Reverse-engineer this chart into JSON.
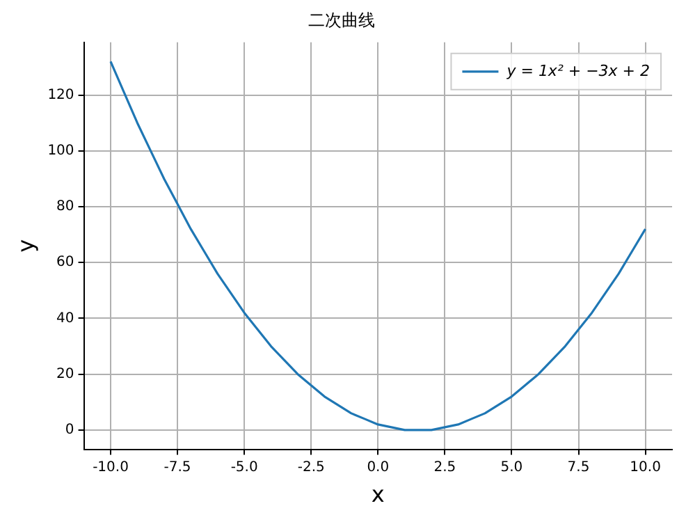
{
  "chart_data": {
    "type": "line",
    "title": "二次曲线",
    "xlabel": "x",
    "ylabel": "y",
    "x": [
      -10,
      -9.5,
      -9,
      -8.5,
      -8,
      -7.5,
      -7,
      -6.5,
      -6,
      -5.5,
      -5,
      -4.5,
      -4,
      -3.5,
      -3,
      -2.5,
      -2,
      -1.5,
      -1,
      -0.5,
      0,
      0.5,
      1,
      1.5,
      2,
      2.5,
      3,
      3.5,
      4,
      4.5,
      5,
      5.5,
      6,
      6.5,
      7,
      7.5,
      8,
      8.5,
      9,
      9.5,
      10
    ],
    "series": [
      {
        "name": "y = 1x² + −3x + 2",
        "color": "#1f77b4",
        "values": [
          132,
          121,
          110,
          100,
          90,
          81,
          72,
          64,
          56,
          49,
          42,
          36,
          30,
          25,
          20,
          16,
          12,
          9,
          6,
          4,
          2,
          1,
          0,
          0,
          0,
          1,
          2,
          4,
          6,
          9,
          12,
          16,
          20,
          25,
          30,
          36,
          42,
          49,
          56,
          64,
          72
        ]
      }
    ],
    "xlim": [
      -11,
      11
    ],
    "ylim": [
      -6.9,
      138.9
    ],
    "xticks": [
      {
        "value": -10,
        "label": "-10.0"
      },
      {
        "value": -7.5,
        "label": "-7.5"
      },
      {
        "value": -5,
        "label": "-5.0"
      },
      {
        "value": -2.5,
        "label": "-2.5"
      },
      {
        "value": 0,
        "label": "0.0"
      },
      {
        "value": 2.5,
        "label": "2.5"
      },
      {
        "value": 5,
        "label": "5.0"
      },
      {
        "value": 7.5,
        "label": "7.5"
      },
      {
        "value": 10,
        "label": "10.0"
      }
    ],
    "yticks": [
      0,
      20,
      40,
      60,
      80,
      100,
      120
    ],
    "grid": true,
    "legend": "top right"
  }
}
